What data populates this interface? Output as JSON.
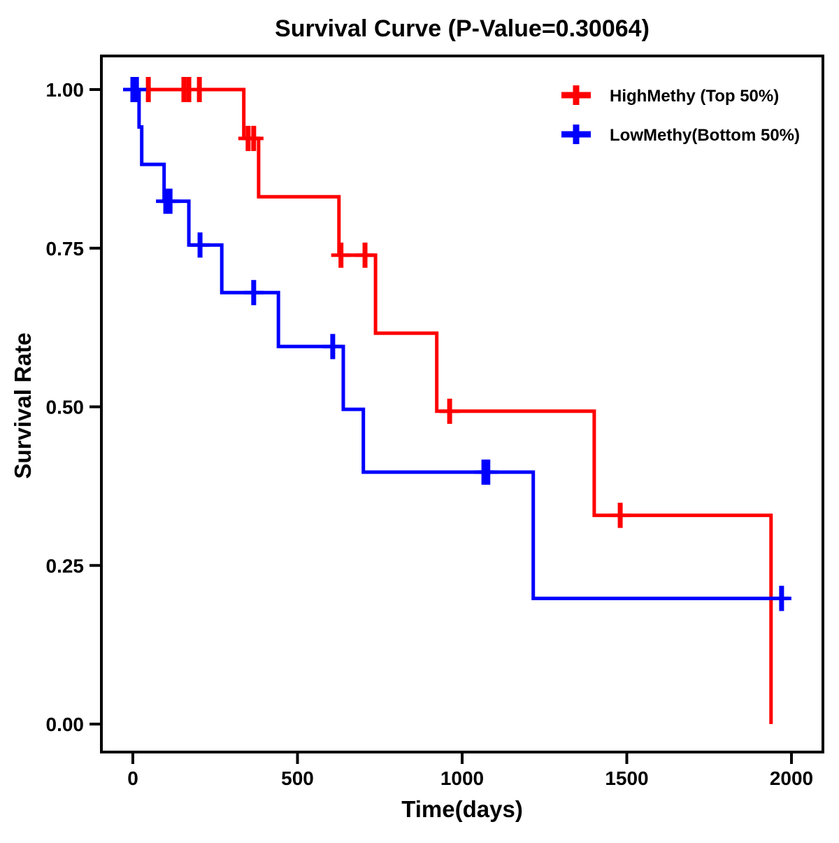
{
  "chart_data": {
    "type": "line",
    "subtype": "kaplan-meier-step-survival",
    "title": "Survival Curve (P-Value=0.30064)",
    "p_value": "0.30064",
    "xlabel": "Time(days)",
    "ylabel": "Survival Rate",
    "xlim": [
      0,
      2000
    ],
    "ylim": [
      0.0,
      1.0
    ],
    "x_ticks": [
      0,
      500,
      1000,
      1500,
      2000
    ],
    "y_ticks": [
      {
        "value": 0.0,
        "label": "0.00"
      },
      {
        "value": 0.25,
        "label": "0.25"
      },
      {
        "value": 0.5,
        "label": "0.50"
      },
      {
        "value": 0.75,
        "label": "0.75"
      },
      {
        "value": 1.0,
        "label": "1.00"
      }
    ],
    "grid": false,
    "legend_position": "top-right",
    "axis_color": "#000000",
    "background_color": "#ffffff",
    "series": [
      {
        "name": "HighMethy (Top 50%)",
        "color": "#ff0000",
        "steps": [
          [
            0,
            1.0
          ],
          [
            337,
            0.923
          ],
          [
            382,
            0.831
          ],
          [
            626,
            0.739
          ],
          [
            737,
            0.616
          ],
          [
            923,
            0.493
          ],
          [
            1401,
            0.329
          ],
          [
            1938,
            0.0
          ]
        ],
        "end_time": 1938,
        "censor_marks": [
          [
            0,
            1.0
          ],
          [
            47,
            1.0
          ],
          [
            155,
            1.0
          ],
          [
            170,
            1.0
          ],
          [
            202,
            1.0
          ],
          [
            350,
            0.923
          ],
          [
            367,
            0.923
          ],
          [
            632,
            0.739
          ],
          [
            705,
            0.739
          ],
          [
            962,
            0.493
          ],
          [
            1480,
            0.329
          ]
        ]
      },
      {
        "name": "LowMethy(Bottom 50%)",
        "color": "#0000ff",
        "steps": [
          [
            0,
            1.0
          ],
          [
            19,
            0.941
          ],
          [
            27,
            0.882
          ],
          [
            95,
            0.824
          ],
          [
            170,
            0.755
          ],
          [
            270,
            0.68
          ],
          [
            442,
            0.595
          ],
          [
            639,
            0.496
          ],
          [
            700,
            0.397
          ],
          [
            1216,
            0.198
          ]
        ],
        "end_time": 1990,
        "censor_marks": [
          [
            0,
            1.0
          ],
          [
            11,
            1.0
          ],
          [
            100,
            0.824
          ],
          [
            113,
            0.824
          ],
          [
            204,
            0.755
          ],
          [
            367,
            0.68
          ],
          [
            607,
            0.595
          ],
          [
            1066,
            0.397
          ],
          [
            1078,
            0.397
          ],
          [
            1970,
            0.198
          ]
        ]
      }
    ]
  }
}
